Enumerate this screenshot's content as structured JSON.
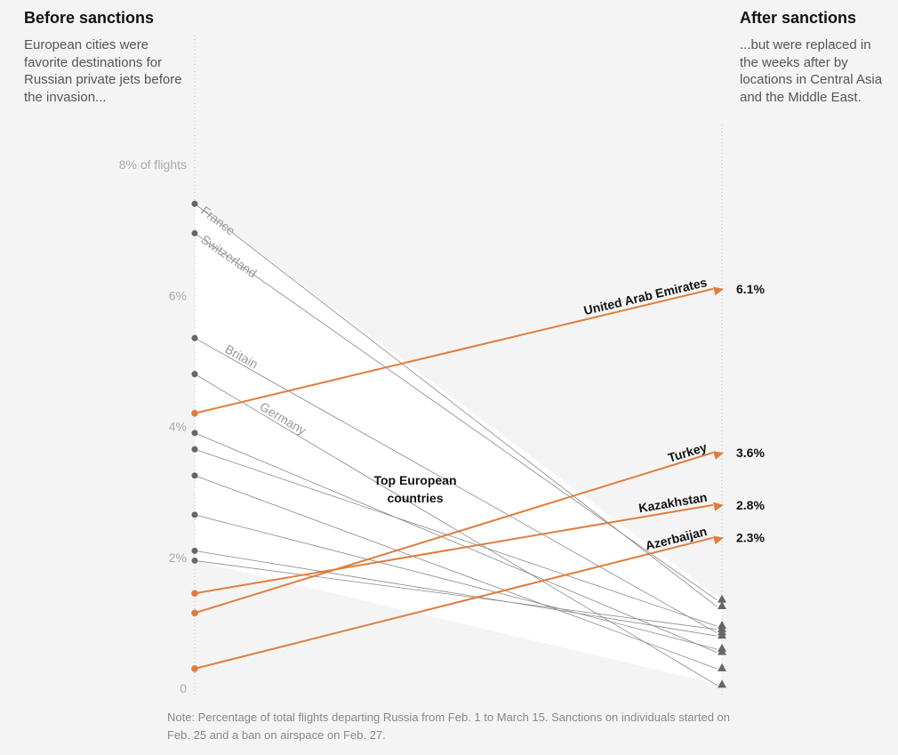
{
  "header": {
    "before_title": "Before sanctions",
    "before_desc": "European cities were favorite destinations for Russian private jets before the invasion...",
    "after_title": "After sanctions",
    "after_desc": "...but were replaced in the weeks after by locations in Central Asia and the Middle East."
  },
  "note": "Note: Percentage of total flights departing Russia from Feb. 1 to March 15. Sanctions on individuals started on Feb. 25 and a ban on airspace on Feb. 27.",
  "colors": {
    "highlight": "#e07d3c",
    "europe": "#666666",
    "axis": "#bbbbbb",
    "area": "#ffffff"
  },
  "chart_data": {
    "type": "line",
    "title": "",
    "x": [
      "Before sanctions",
      "After sanctions"
    ],
    "ylim": [
      0,
      8
    ],
    "yticks": [
      {
        "value": 0,
        "label": "0"
      },
      {
        "value": 2,
        "label": "2%"
      },
      {
        "value": 4,
        "label": "4%"
      },
      {
        "value": 6,
        "label": "6%"
      },
      {
        "value": 8,
        "label": "8% of flights"
      }
    ],
    "annotation": [
      "Top European",
      "countries"
    ],
    "europe_series": [
      {
        "name": "France",
        "before": 7.4,
        "after": 1.25
      },
      {
        "name": "Switzerland",
        "before": 6.95,
        "after": 1.35
      },
      {
        "name": "Britain",
        "before": 5.35,
        "after": 0.85
      },
      {
        "name": "Germany",
        "before": 4.8,
        "after": 0.05
      },
      {
        "name": "",
        "before": 3.9,
        "after": 0.55
      },
      {
        "name": "",
        "before": 3.65,
        "after": 0.95
      },
      {
        "name": "",
        "before": 3.25,
        "after": 0.3
      },
      {
        "name": "",
        "before": 2.65,
        "after": 0.6
      },
      {
        "name": "",
        "before": 2.1,
        "after": 0.8
      },
      {
        "name": "",
        "before": 1.95,
        "after": 0.9
      }
    ],
    "highlight_series": [
      {
        "name": "United Arab Emirates",
        "before": 4.2,
        "after": 6.1,
        "value_label": "6.1%"
      },
      {
        "name": "Turkey",
        "before": 1.15,
        "after": 3.6,
        "value_label": "3.6%"
      },
      {
        "name": "Kazakhstan",
        "before": 1.45,
        "after": 2.8,
        "value_label": "2.8%"
      },
      {
        "name": "Azerbaijan",
        "before": 0.3,
        "after": 2.3,
        "value_label": "2.3%"
      }
    ]
  }
}
